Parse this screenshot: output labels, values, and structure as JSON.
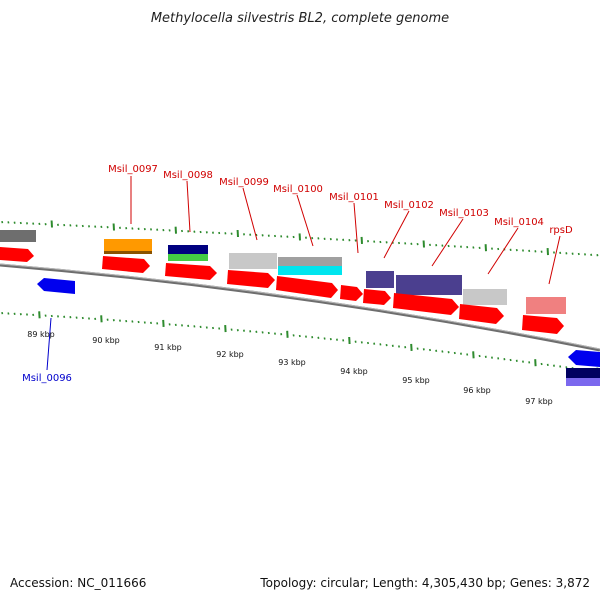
{
  "title": "Methylocella silvestris BL2, complete genome",
  "footer": {
    "accession": "Accession: NC_011666",
    "summary": "Topology: circular; Length: 4,305,430 bp; Genes: 3,872"
  },
  "colors": {
    "backbone": "#7a7a7a",
    "tick": "#2e8b2e",
    "label_red": "#d00000",
    "label_blue": "#0000cc"
  },
  "kbp_labels": [
    "89 kbp",
    "90 kbp",
    "91 kbp",
    "92 kbp",
    "93 kbp",
    "94 kbp",
    "95 kbp",
    "96 kbp",
    "97 kbp"
  ],
  "gene_labels": [
    {
      "name": "Msil_0097",
      "color": "red"
    },
    {
      "name": "Msil_0098",
      "color": "red"
    },
    {
      "name": "Msil_0099",
      "color": "red"
    },
    {
      "name": "Msil_0100",
      "color": "red"
    },
    {
      "name": "Msil_0101",
      "color": "red"
    },
    {
      "name": "Msil_0102",
      "color": "red"
    },
    {
      "name": "Msil_0103",
      "color": "red"
    },
    {
      "name": "Msil_0104",
      "color": "red"
    },
    {
      "name": "rpsD",
      "color": "red"
    },
    {
      "name": "Msil_0096",
      "color": "blue"
    }
  ]
}
